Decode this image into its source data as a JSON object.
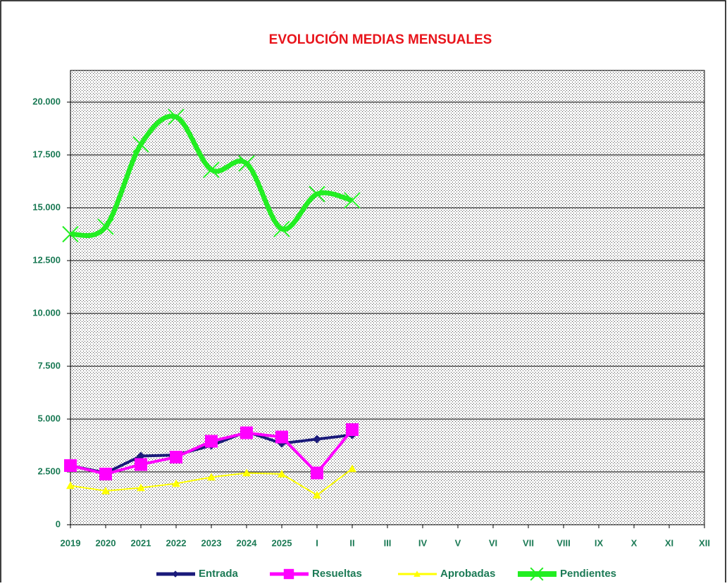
{
  "chart_data": {
    "type": "line",
    "title": "EVOLUCIÓN MEDIAS MENSUALES",
    "categories": [
      "2019",
      "2020",
      "2021",
      "2022",
      "2023",
      "2024",
      "2025",
      "I",
      "II",
      "III",
      "IV",
      "V",
      "VI",
      "VII",
      "VIII",
      "IX",
      "X",
      "XI",
      "XII"
    ],
    "series": [
      {
        "name": "Entrada",
        "color": "#1a1a7a",
        "marker": "diamond",
        "values": [
          2800,
          2450,
          3250,
          3300,
          3750,
          4400,
          3850,
          4050,
          4250,
          null,
          null,
          null,
          null,
          null,
          null,
          null,
          null,
          null,
          null
        ]
      },
      {
        "name": "Resueltas",
        "color": "#ff00ff",
        "marker": "square",
        "values": [
          2800,
          2400,
          2850,
          3200,
          3950,
          4350,
          4150,
          2450,
          4500,
          null,
          null,
          null,
          null,
          null,
          null,
          null,
          null,
          null,
          null
        ]
      },
      {
        "name": "Aprobadas",
        "color": "#ffff00",
        "marker": "triangle",
        "values": [
          1850,
          1600,
          1750,
          1950,
          2250,
          2450,
          2400,
          1400,
          2650,
          null,
          null,
          null,
          null,
          null,
          null,
          null,
          null,
          null,
          null
        ]
      },
      {
        "name": "Pendientes",
        "color": "#22ee22",
        "marker": "x",
        "smooth": true,
        "values": [
          13750,
          14100,
          18000,
          19300,
          16800,
          17100,
          14000,
          15650,
          15350,
          null,
          null,
          null,
          null,
          null,
          null,
          null,
          null,
          null,
          null
        ]
      }
    ],
    "ylim": [
      0,
      21500
    ],
    "yticks": [
      0,
      {
        "value": 2500,
        "label": "2.500"
      },
      {
        "value": 5000,
        "label": "5.000"
      },
      {
        "value": 7500,
        "label": "7.500"
      },
      {
        "value": 10000,
        "label": "10.000"
      },
      {
        "value": 12500,
        "label": "12.500"
      },
      {
        "value": 15000,
        "label": "15.000"
      },
      {
        "value": 17500,
        "label": "17.500"
      },
      {
        "value": 20000,
        "label": "20.000"
      }
    ],
    "grid": true
  }
}
